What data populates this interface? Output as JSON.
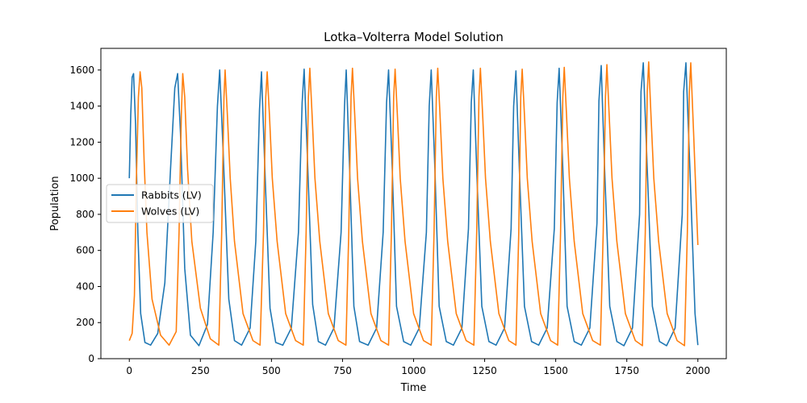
{
  "chart_data": {
    "type": "line",
    "title": "Lotka–Volterra Model Solution",
    "xlabel": "Time",
    "ylabel": "Population",
    "xlim": [
      -100,
      2100
    ],
    "ylim": [
      0,
      1720
    ],
    "xticks": [
      0,
      250,
      500,
      750,
      1000,
      1250,
      1500,
      1750,
      2000
    ],
    "yticks": [
      0,
      200,
      400,
      600,
      800,
      1000,
      1200,
      1400,
      1600
    ],
    "grid": false,
    "legend_position": "center-left",
    "series": [
      {
        "name": "Rabbits (LV)",
        "color": "#1f77b4",
        "x": [
          0,
          5,
          10,
          15,
          22,
          30,
          40,
          55,
          75,
          100,
          125,
          145,
          160,
          170,
          180,
          195,
          215,
          245,
          275,
          295,
          310,
          318,
          330,
          350,
          370,
          395,
          425,
          445,
          458,
          465,
          478,
          495,
          515,
          540,
          570,
          595,
          608,
          615,
          628,
          645,
          665,
          690,
          720,
          745,
          757,
          763,
          775,
          790,
          810,
          840,
          870,
          893,
          905,
          912,
          925,
          940,
          965,
          990,
          1020,
          1045,
          1055,
          1062,
          1075,
          1090,
          1115,
          1140,
          1170,
          1193,
          1203,
          1210,
          1222,
          1240,
          1265,
          1290,
          1320,
          1343,
          1352,
          1360,
          1372,
          1390,
          1415,
          1440,
          1470,
          1495,
          1505,
          1512,
          1525,
          1540,
          1565,
          1590,
          1620,
          1645,
          1652,
          1660,
          1672,
          1690,
          1715,
          1740,
          1770,
          1795,
          1800,
          1808,
          1822,
          1840,
          1865,
          1890,
          1920,
          1945,
          1950,
          1958,
          1972,
          1990,
          2000
        ],
        "y": [
          1000,
          1350,
          1560,
          1580,
          1300,
          700,
          250,
          90,
          75,
          140,
          420,
          1050,
          1500,
          1580,
          1250,
          500,
          130,
          72,
          190,
          700,
          1400,
          1600,
          1150,
          330,
          100,
          75,
          170,
          650,
          1380,
          1590,
          1000,
          280,
          90,
          75,
          170,
          700,
          1420,
          1605,
          1050,
          300,
          95,
          75,
          170,
          700,
          1400,
          1600,
          1050,
          290,
          95,
          75,
          170,
          700,
          1420,
          1600,
          1050,
          290,
          95,
          75,
          170,
          700,
          1400,
          1600,
          1050,
          290,
          95,
          75,
          170,
          720,
          1420,
          1600,
          1050,
          290,
          95,
          75,
          170,
          720,
          1400,
          1595,
          1050,
          290,
          95,
          75,
          170,
          720,
          1420,
          1610,
          1050,
          290,
          95,
          75,
          170,
          750,
          1430,
          1625,
          1050,
          290,
          95,
          72,
          170,
          800,
          1480,
          1640,
          1050,
          290,
          95,
          72,
          170,
          800,
          1480,
          1640,
          1050,
          250,
          75
        ]
      },
      {
        "name": "Wolves (LV)",
        "color": "#ff7f0e",
        "x": [
          0,
          10,
          18,
          25,
          32,
          38,
          44,
          52,
          62,
          80,
          110,
          140,
          165,
          175,
          183,
          188,
          195,
          205,
          220,
          250,
          285,
          315,
          325,
          333,
          337,
          345,
          355,
          370,
          400,
          435,
          460,
          472,
          480,
          485,
          493,
          503,
          520,
          550,
          585,
          612,
          622,
          630,
          635,
          643,
          653,
          670,
          700,
          735,
          762,
          772,
          780,
          785,
          793,
          803,
          820,
          850,
          885,
          912,
          922,
          930,
          935,
          943,
          953,
          970,
          1000,
          1035,
          1062,
          1072,
          1080,
          1085,
          1093,
          1103,
          1120,
          1150,
          1185,
          1212,
          1222,
          1230,
          1235,
          1243,
          1253,
          1270,
          1300,
          1335,
          1360,
          1370,
          1377,
          1382,
          1390,
          1400,
          1417,
          1447,
          1482,
          1507,
          1517,
          1525,
          1530,
          1538,
          1548,
          1565,
          1595,
          1630,
          1657,
          1667,
          1675,
          1680,
          1688,
          1698,
          1715,
          1745,
          1780,
          1805,
          1815,
          1822,
          1827,
          1835,
          1845,
          1862,
          1892,
          1927,
          1953,
          1963,
          1970,
          1975,
          1985,
          2000
        ],
        "y": [
          100,
          140,
          350,
          1000,
          1450,
          1590,
          1500,
          1100,
          700,
          330,
          130,
          75,
          150,
          700,
          1350,
          1580,
          1450,
          1050,
          650,
          280,
          110,
          75,
          700,
          1450,
          1600,
          1350,
          1000,
          650,
          250,
          100,
          75,
          700,
          1450,
          1590,
          1350,
          1000,
          650,
          250,
          100,
          75,
          700,
          1450,
          1610,
          1350,
          1000,
          650,
          250,
          100,
          75,
          700,
          1450,
          1610,
          1350,
          1000,
          650,
          250,
          100,
          75,
          700,
          1450,
          1605,
          1350,
          1000,
          650,
          250,
          100,
          75,
          700,
          1450,
          1610,
          1350,
          1000,
          650,
          250,
          100,
          75,
          700,
          1450,
          1610,
          1350,
          1000,
          650,
          250,
          100,
          75,
          700,
          1450,
          1605,
          1350,
          1000,
          650,
          250,
          100,
          75,
          700,
          1450,
          1615,
          1350,
          1000,
          650,
          250,
          100,
          75,
          700,
          1450,
          1630,
          1350,
          1000,
          650,
          250,
          100,
          72,
          700,
          1480,
          1645,
          1350,
          1000,
          650,
          250,
          100,
          72,
          700,
          1480,
          1640,
          1250,
          630
        ]
      }
    ]
  }
}
